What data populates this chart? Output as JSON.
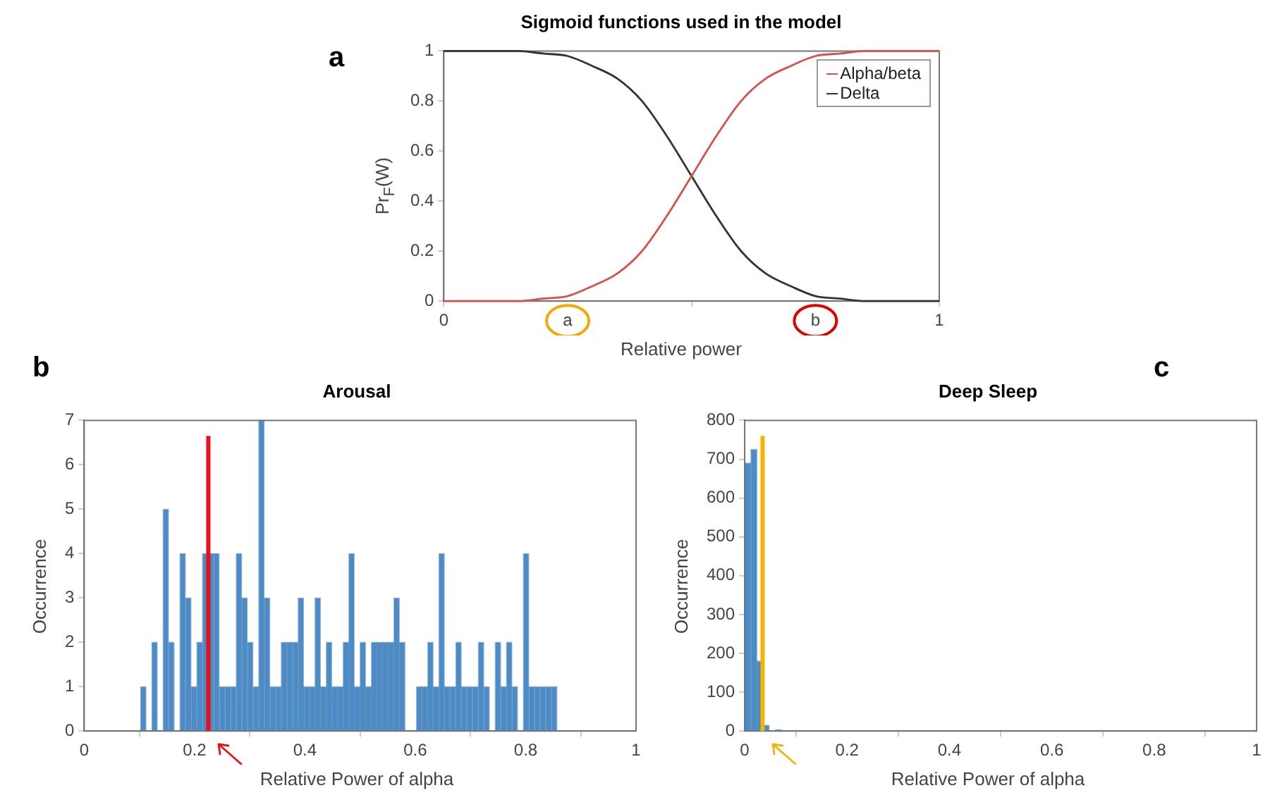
{
  "chart_data": [
    {
      "type": "line",
      "title": "Sigmoid functions used in the model",
      "xlabel": "Relative power",
      "ylabel": "Pr$_{F}$(W)",
      "legend": "top right",
      "x": [
        0,
        0.05,
        0.1,
        0.15,
        0.2,
        0.25,
        0.3,
        0.35,
        0.4,
        0.45,
        0.5,
        0.55,
        0.6,
        0.65,
        0.7,
        0.75,
        0.8,
        0.85,
        0.9,
        0.95,
        1
      ],
      "series": [
        {
          "name": "Alpha/beta",
          "color": "#d9504a",
          "values": [
            0,
            0,
            0,
            0,
            0.01,
            0.02,
            0.06,
            0.11,
            0.2,
            0.34,
            0.5,
            0.66,
            0.8,
            0.89,
            0.94,
            0.98,
            0.99,
            1,
            1,
            1,
            1
          ]
        },
        {
          "name": "Delta",
          "color": "#333333",
          "values": [
            1,
            1,
            1,
            1,
            0.99,
            0.98,
            0.94,
            0.89,
            0.8,
            0.66,
            0.5,
            0.34,
            0.2,
            0.11,
            0.06,
            0.02,
            0.01,
            0,
            0,
            0,
            0
          ]
        }
      ],
      "xlim": [
        0,
        1
      ],
      "xticks": [
        0,
        {
          "value": 0.5,
          "label": null
        },
        1
      ],
      "ylim": [
        0,
        1
      ],
      "yticks": [
        0,
        0.2,
        0.4,
        0.6,
        0.8,
        1
      ],
      "annotations": [
        "a",
        "a",
        "b"
      ]
    },
    {
      "type": "histogram",
      "title": "Arousal",
      "xlabel": "Relative Power of alpha",
      "ylabel": "Occurrence",
      "color": "#4a8cc8",
      "bins": [
        0.102,
        0.1122,
        0.1224,
        0.1326,
        0.1428,
        0.153,
        0.1632,
        0.1734,
        0.1836,
        0.1938,
        0.204,
        0.2142,
        0.2244,
        0.2346,
        0.2448,
        0.255,
        0.2652,
        0.2754,
        0.2856,
        0.2958,
        0.306,
        0.3162,
        0.3264,
        0.3366,
        0.3468,
        0.357,
        0.3672,
        0.3774,
        0.3876,
        0.3978,
        0.408,
        0.4182,
        0.4284,
        0.4386,
        0.4488,
        0.459,
        0.4692,
        0.4794,
        0.4896,
        0.4998,
        0.51,
        0.5202,
        0.5304,
        0.5406,
        0.5508,
        0.561,
        0.5712,
        0.5814,
        0.5916,
        0.6018,
        0.612,
        0.6222,
        0.6324,
        0.6426,
        0.6528,
        0.663,
        0.6732,
        0.6834,
        0.6936,
        0.7038,
        0.714,
        0.7242,
        0.7344,
        0.7446,
        0.7548,
        0.765,
        0.7752,
        0.7854,
        0.7956,
        0.8058,
        0.816,
        0.8262,
        0.8364,
        0.8466,
        0.8568
      ],
      "values": [
        1,
        0,
        2,
        0,
        5,
        2,
        0,
        4,
        3,
        1,
        2,
        4,
        4,
        4,
        1,
        1,
        1,
        4,
        3,
        2,
        1,
        7,
        3,
        1,
        1,
        2,
        2,
        2,
        3,
        1,
        1,
        3,
        1,
        2,
        1,
        1,
        2,
        4,
        1,
        2,
        1,
        2,
        2,
        2,
        2,
        3,
        2,
        0,
        0,
        1,
        1,
        2,
        1,
        4,
        1,
        1,
        2,
        1,
        1,
        1,
        2,
        1,
        0,
        2,
        1,
        2,
        1,
        0,
        4,
        1,
        1,
        1,
        1,
        1
      ],
      "xlim": [
        0,
        1
      ],
      "xticks": [
        0,
        0.2,
        0.4,
        0.6,
        0.8,
        1
      ],
      "ylim": [
        0,
        7
      ],
      "yticks": [
        0,
        1,
        2,
        3,
        4,
        5,
        6,
        7
      ],
      "ref_lines": [
        {
          "axis": "x",
          "value": 0.225,
          "color": "#e8101a"
        }
      ],
      "annotations": [
        "b"
      ]
    },
    {
      "type": "histogram",
      "title": "Deep Sleep",
      "xlabel": "Relative Power of alpha",
      "ylabel": "Occurrence",
      "color": "#4a8cc8",
      "bins": [
        0,
        0.012,
        0.024,
        0.036,
        0.048,
        0.06,
        0.072
      ],
      "values": [
        690,
        725,
        180,
        15,
        0,
        3
      ],
      "xlim": [
        0,
        1
      ],
      "xticks": [
        0,
        0.2,
        0.4,
        0.6,
        0.8,
        1
      ],
      "ylim": [
        0,
        800
      ],
      "yticks": [
        0,
        100,
        200,
        300,
        400,
        500,
        600,
        700,
        800
      ],
      "ref_lines": [
        {
          "axis": "x",
          "value": 0.035,
          "color": "#f5b400"
        }
      ],
      "annotations": [
        "c"
      ]
    }
  ]
}
